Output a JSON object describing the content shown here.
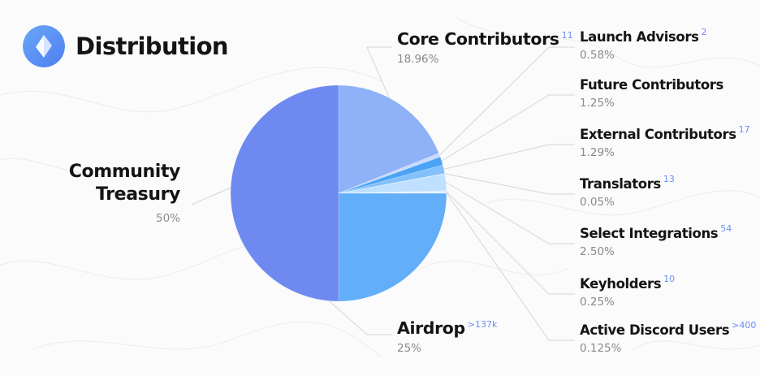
{
  "header": {
    "title": "Distribution"
  },
  "chart_data": {
    "type": "pie",
    "title": "Distribution",
    "slices": [
      {
        "name": "Community Treasury",
        "value": 50,
        "pct_label": "50%",
        "count": "",
        "color": "#6e8af0"
      },
      {
        "name": "Core Contributors",
        "value": 18.96,
        "pct_label": "18.96%",
        "count": "11",
        "color": "#8fb1f8"
      },
      {
        "name": "Launch Advisors",
        "value": 0.58,
        "pct_label": "0.58%",
        "count": "2",
        "color": "#c7dafd"
      },
      {
        "name": "Future Contributors",
        "value": 1.25,
        "pct_label": "1.25%",
        "count": "",
        "color": "#4aa3f5"
      },
      {
        "name": "External Contributors",
        "value": 1.29,
        "pct_label": "1.29%",
        "count": "17",
        "color": "#84c0fa"
      },
      {
        "name": "Translators",
        "value": 0.05,
        "pct_label": "0.05%",
        "count": "13",
        "color": "#e9f2ff"
      },
      {
        "name": "Select Integrations",
        "value": 2.5,
        "pct_label": "2.50%",
        "count": "54",
        "color": "#bfe0ff"
      },
      {
        "name": "Keyholders",
        "value": 0.25,
        "pct_label": "0.25%",
        "count": "10",
        "color": "#d7ebff"
      },
      {
        "name": "Active Discord Users",
        "value": 0.125,
        "pct_label": "0.125%",
        "count": ">400",
        "color": "#f2f8ff"
      },
      {
        "name": "Airdrop",
        "value": 25,
        "pct_label": "25%",
        "count": ">137k",
        "color": "#62aef8"
      }
    ]
  }
}
